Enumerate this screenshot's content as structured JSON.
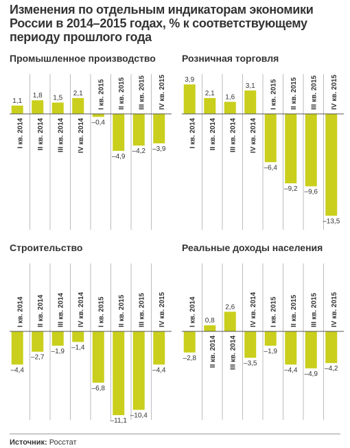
{
  "title": "Изменения по отдельным индикаторам экономики России в 2014–2015 годах, % к соответствующему периоду прошлого года",
  "source": {
    "label": "Источник:",
    "text": "Росстат"
  },
  "chart_data": [
    {
      "type": "bar",
      "title": "Промышленное производство",
      "color": "#c9cf1c",
      "categories": [
        "I кв. 2014",
        "II кв. 2014",
        "III кв. 2014",
        "IV кв. 2014",
        "I кв. 2015",
        "II кв. 2015",
        "III кв. 2015",
        "IV кв. 2015"
      ],
      "values": [
        1.1,
        1.8,
        1.5,
        2.1,
        -0.4,
        -4.9,
        -4.2,
        -3.9
      ],
      "value_labels": [
        "1,1",
        "1,8",
        "1,5",
        "2,1",
        "–0,4",
        "–4,9",
        "–4,2",
        "–3,9"
      ]
    },
    {
      "type": "bar",
      "title": "Розничная торговля",
      "color": "#c9cf1c",
      "categories": [
        "I кв. 2014",
        "II кв. 2014",
        "III кв. 2014",
        "IV кв. 2014",
        "I кв. 2015",
        "II кв. 2015",
        "III кв. 2015",
        "IV кв. 2015"
      ],
      "values": [
        3.9,
        2.1,
        1.6,
        3.1,
        -6.4,
        -9.2,
        -9.6,
        -13.5
      ],
      "value_labels": [
        "3,9",
        "2,1",
        "1,6",
        "3,1",
        "–6,4",
        "–9,2",
        "–9,6",
        "–13,5"
      ]
    },
    {
      "type": "bar",
      "title": "Строительство",
      "color": "#c9cf1c",
      "categories": [
        "I кв. 2014",
        "II кв. 2014",
        "III кв. 2014",
        "IV кв. 2014",
        "I кв. 2015",
        "II кв. 2015",
        "III кв. 2015",
        "IV кв. 2015"
      ],
      "values": [
        -4.4,
        -2.7,
        -1.9,
        -1.4,
        -6.8,
        -11.1,
        -10.4,
        -4.4
      ],
      "value_labels": [
        "–4,4",
        "–2,7",
        "–1,9",
        "–1,4",
        "–6,8",
        "–11,1",
        "–10,4",
        "–4,4"
      ]
    },
    {
      "type": "bar",
      "title": "Реальные доходы населения",
      "color": "#c9cf1c",
      "categories": [
        "I кв. 2014",
        "II кв. 2014",
        "III кв. 2014",
        "IV кв. 2014",
        "I кв. 2015",
        "II кв. 2015",
        "III кв. 2015",
        "IV кв. 2015"
      ],
      "values": [
        -2.8,
        0.8,
        2.6,
        -3.5,
        -1.9,
        -4.4,
        -4.9,
        -4.2
      ],
      "value_labels": [
        "–2,8",
        "0,8",
        "2,6",
        "–3,5",
        "–1,9",
        "–4,4",
        "–4,9",
        "–4,2"
      ]
    }
  ]
}
